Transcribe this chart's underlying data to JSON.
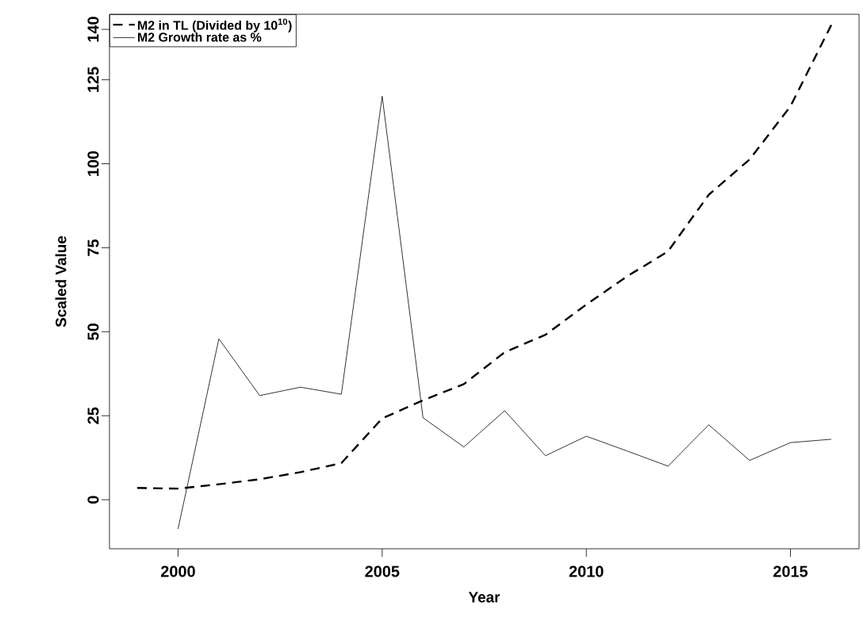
{
  "chart_data": {
    "type": "line",
    "xlabel": "Year",
    "ylabel": "Scaled Value",
    "x": [
      1999,
      2000,
      2001,
      2002,
      2003,
      2004,
      2005,
      2006,
      2007,
      2008,
      2009,
      2010,
      2011,
      2012,
      2013,
      2014,
      2015,
      2016
    ],
    "series": [
      {
        "name": "M2 in TL (Divided by 10$^{10}$)",
        "color": "#000000",
        "line_style": "dashed",
        "values": [
          3.5,
          3.3,
          4.6,
          6.1,
          8.2,
          10.9,
          24.2,
          29.6,
          34.4,
          43.9,
          49.1,
          58.1,
          66.5,
          73.9,
          90.8,
          101.3,
          117.1,
          141.3
        ]
      },
      {
        "name": "M2 Growth rate as %",
        "color": "#000000",
        "line_style": "solid",
        "x": [
          2000,
          2001,
          2002,
          2003,
          2004,
          2005,
          2006,
          2007,
          2008,
          2009,
          2010,
          2011,
          2012,
          2013,
          2014,
          2015,
          2016
        ],
        "values": [
          -8.7,
          47.9,
          31.0,
          33.5,
          31.4,
          120.1,
          24.4,
          15.7,
          26.5,
          13.1,
          18.9,
          14.5,
          10.0,
          22.3,
          11.7,
          17.0,
          18.0
        ]
      }
    ],
    "xlim": [
      1998.32,
      2016.68
    ],
    "ylim": [
      -14.6,
      144.5
    ],
    "xticks": [
      2000,
      2005,
      2010,
      2015
    ],
    "yticks": [
      0,
      25,
      50,
      75,
      100,
      125,
      140
    ],
    "legend": "top left",
    "marker": "none"
  }
}
